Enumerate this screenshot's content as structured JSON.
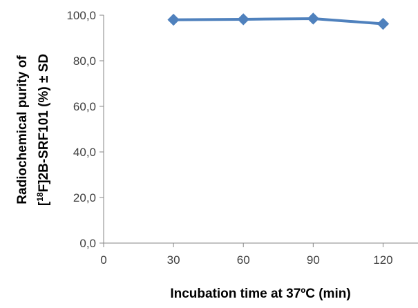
{
  "chart_data": {
    "type": "line",
    "x": [
      30,
      60,
      90,
      120
    ],
    "series": [
      {
        "values": [
          98.0,
          98.2,
          98.5,
          96.2
        ],
        "color": "#4f81bd",
        "marker": "diamond"
      }
    ],
    "xlabel": "Incubation time at 37ºC (min)",
    "ylabel_line1": "Radiochemical purity of",
    "ylabel_line2_prefix": "[",
    "ylabel_line2_sup": "18",
    "ylabel_line2_rest": "F]2B-SRF101  (%) ± SD",
    "xlim": [
      0,
      135
    ],
    "ylim": [
      0,
      100
    ],
    "xticks": [
      0,
      30,
      60,
      90,
      120
    ],
    "xtick_labels": [
      "0",
      "30",
      "60",
      "90",
      "120"
    ],
    "yticks": [
      0,
      20,
      40,
      60,
      80,
      100
    ],
    "ytick_labels": [
      "0,0",
      "20,0",
      "40,0",
      "60,0",
      "80,0",
      "100,0"
    ],
    "grid": false,
    "legend": "none"
  }
}
